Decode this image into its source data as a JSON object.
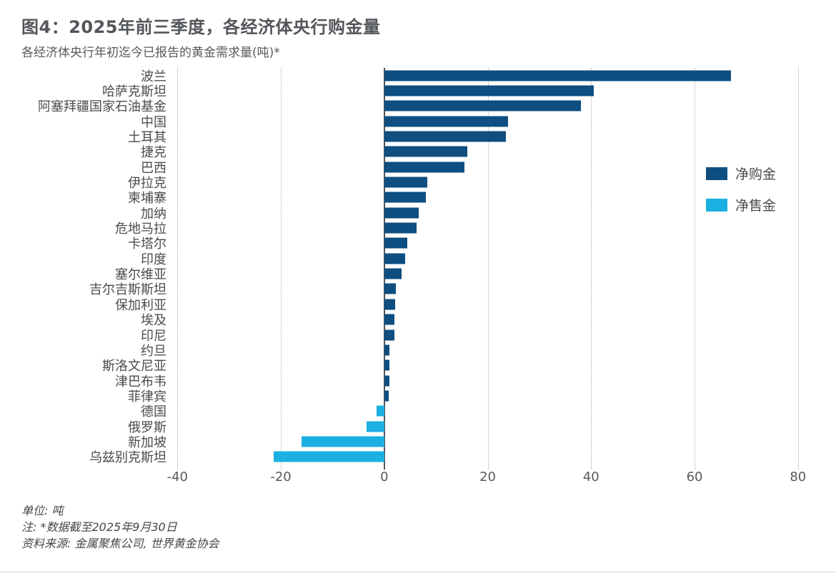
{
  "page": {
    "title": "图4：2025年前三季度，各经济体央行购金量",
    "subtitle": "各经济体央行年初迄今已报告的黄金需求量(吨)*"
  },
  "chart_data": {
    "type": "bar",
    "orientation": "horizontal",
    "title": "图4：2025年前三季度，各经济体央行购金量",
    "subtitle": "各经济体央行年初迄今已报告的黄金需求量(吨)*",
    "unit": "吨",
    "categories": [
      "波兰",
      "哈萨克斯坦",
      "阿塞拜疆国家石油基金",
      "中国",
      "土耳其",
      "捷克",
      "巴西",
      "伊拉克",
      "柬埔寨",
      "加纳",
      "危地马拉",
      "卡塔尔",
      "印度",
      "塞尔维亚",
      "吉尔吉斯斯坦",
      "保加利亚",
      "埃及",
      "印尼",
      "约旦",
      "斯洛文尼亚",
      "津巴布韦",
      "菲律宾",
      "德国",
      "俄罗斯",
      "新加坡",
      "乌兹别克斯坦"
    ],
    "values": [
      67,
      40.5,
      38,
      24,
      23.5,
      16,
      15.5,
      8.3,
      8,
      6.6,
      6.2,
      4.4,
      4,
      3.3,
      2.2,
      2.1,
      2,
      1.9,
      1,
      1,
      1,
      0.8,
      -1.5,
      -3.4,
      -16,
      -21.4
    ],
    "series": [
      {
        "name": "净购金",
        "color": "#0E4E80",
        "rule": "values >= 0"
      },
      {
        "name": "净售金",
        "color": "#1BB0E1",
        "rule": "values < 0"
      }
    ],
    "xticks": [
      -40,
      -20,
      0,
      20,
      40,
      60,
      80
    ],
    "xlim": [
      -40,
      80
    ],
    "grid": "vertical dotted gridlines at each tick; solid line at 0",
    "legend_position": "right-middle"
  },
  "footer": {
    "unit": "单位: 吨",
    "note": "注: *数据截至2025年9月30日",
    "source": "资料来源: 金属聚焦公司, 世界黄金协会"
  },
  "colors": {
    "net_purchase": "#0E4E80",
    "net_sale": "#1BB0E1",
    "title_text": "#53565A",
    "axis_text": "#58595B",
    "gridline": "#A9AAAC"
  }
}
